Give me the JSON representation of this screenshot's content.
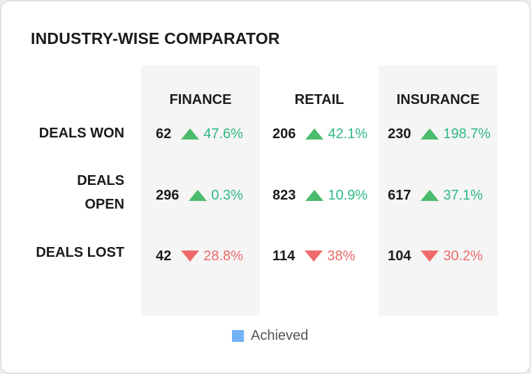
{
  "title": "INDUSTRY-WISE COMPARATOR",
  "legend": {
    "label": "Achieved",
    "color": "#72b3f5"
  },
  "colors": {
    "up": "#4cbb6b",
    "up_text": "#2eb882",
    "down": "#f06a6a",
    "down_text": "#f06a6a"
  },
  "chart_data": {
    "type": "table",
    "title": "INDUSTRY-WISE COMPARATOR",
    "columns": [
      "FINANCE",
      "RETAIL",
      "INSURANCE"
    ],
    "rows": [
      {
        "label": [
          "DEALS WON"
        ],
        "cells": [
          {
            "value": "62",
            "change": "47.6%",
            "direction": "up"
          },
          {
            "value": "206",
            "change": "42.1%",
            "direction": "up"
          },
          {
            "value": "230",
            "change": "198.7%",
            "direction": "up"
          }
        ]
      },
      {
        "label": [
          "DEALS",
          "OPEN"
        ],
        "cells": [
          {
            "value": "296",
            "change": "0.3%",
            "direction": "up"
          },
          {
            "value": "823",
            "change": "10.9%",
            "direction": "up"
          },
          {
            "value": "617",
            "change": "37.1%",
            "direction": "up"
          }
        ]
      },
      {
        "label": [
          "DEALS LOST"
        ],
        "cells": [
          {
            "value": "42",
            "change": "28.8%",
            "direction": "down"
          },
          {
            "value": "114",
            "change": "38%",
            "direction": "down"
          },
          {
            "value": "104",
            "change": "30.2%",
            "direction": "down"
          }
        ]
      }
    ],
    "legend": [
      "Achieved"
    ]
  }
}
